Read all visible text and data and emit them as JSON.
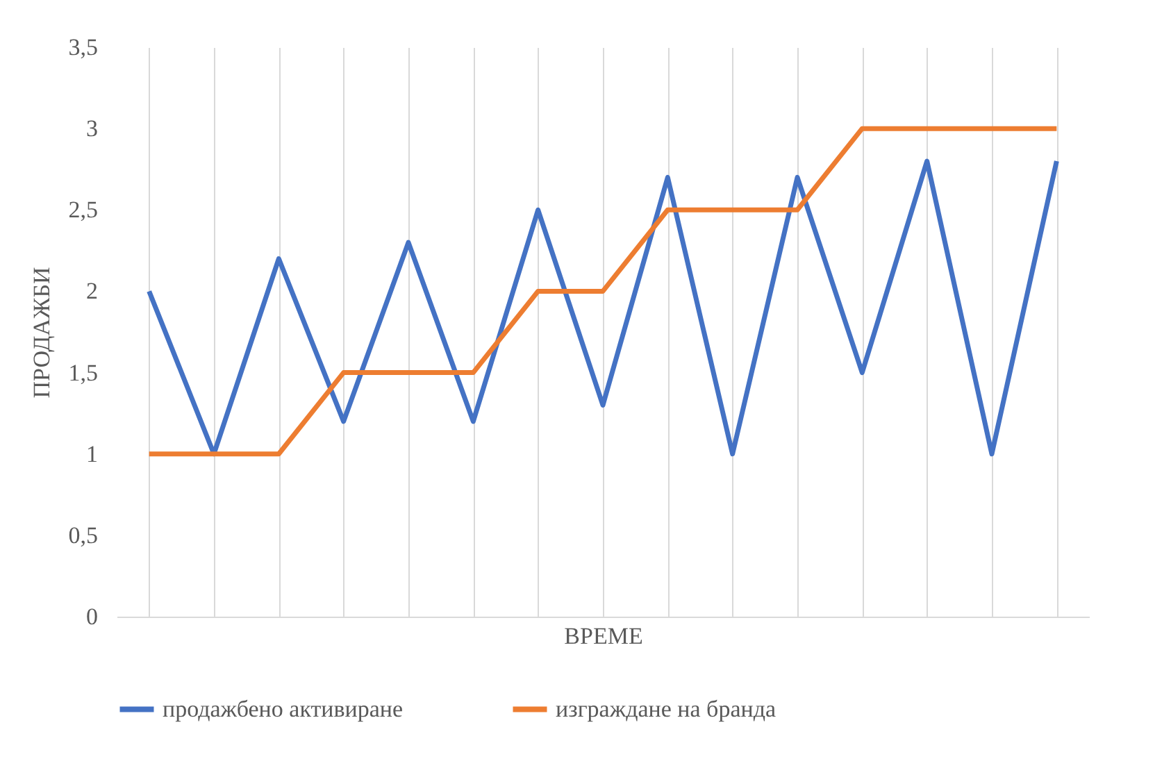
{
  "chart_data": {
    "type": "line",
    "xlabel": "ВРЕМЕ",
    "ylabel": "ПРОДАЖБИ",
    "categories": [
      null,
      null,
      null,
      null,
      null,
      null,
      null,
      null,
      null,
      null,
      null,
      null,
      null,
      null,
      null
    ],
    "series": [
      {
        "name": "продажбено активиране",
        "color": "#4472c4",
        "values": [
          2,
          1,
          2.2,
          1.2,
          2.3,
          1.2,
          2.5,
          1.3,
          2.7,
          1,
          2.7,
          1.5,
          2.8,
          1,
          2.8
        ]
      },
      {
        "name": "изграждане на бранда",
        "color": "#ed7d31",
        "values": [
          1,
          1,
          1,
          1.5,
          1.5,
          1.5,
          2,
          2,
          2.5,
          2.5,
          2.5,
          3,
          3,
          3,
          3
        ]
      }
    ],
    "ylim": [
      0,
      3.5
    ],
    "yticks": [
      0,
      {
        "value": 0.5,
        "label": "0,5"
      },
      1,
      {
        "value": 1.5,
        "label": "1,5"
      },
      2,
      {
        "value": 2.5,
        "label": "2,5"
      },
      3,
      {
        "value": 3.5,
        "label": "3,5"
      }
    ],
    "grid": "x",
    "legend": "bottom",
    "marker": "none",
    "line_style": "solid"
  }
}
